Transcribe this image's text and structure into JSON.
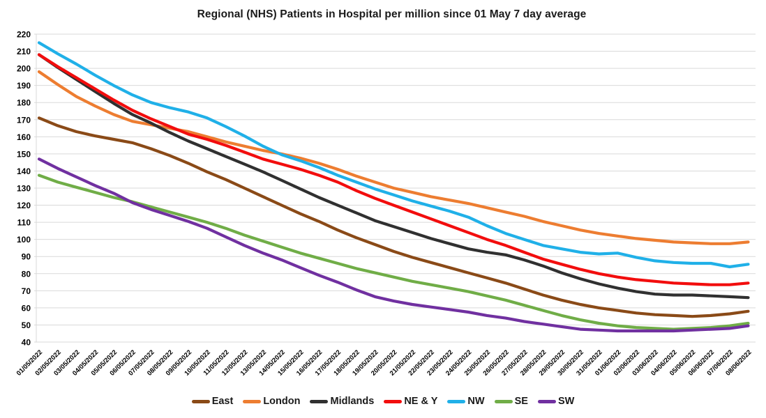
{
  "title": "Regional (NHS) Patients in Hospital per million since 01 May 7 day average",
  "chart_data": {
    "type": "line",
    "title": "Regional (NHS) Patients in Hospital per million since 01 May 7 day average",
    "xlabel": "",
    "ylabel": "",
    "ylim": [
      40,
      220
    ],
    "ytick_step": 10,
    "grid": "horizontal",
    "gridline_color": "#D9D9D9",
    "legend_position": "bottom",
    "x": [
      "01/05/2022",
      "02/05/2022",
      "03/05/2022",
      "04/05/2022",
      "05/05/2022",
      "06/05/2022",
      "07/05/2022",
      "08/05/2022",
      "09/05/2022",
      "10/05/2022",
      "11/05/2022",
      "12/05/2022",
      "13/05/2022",
      "14/05/2022",
      "15/05/2022",
      "16/05/2022",
      "17/05/2022",
      "18/05/2022",
      "19/05/2022",
      "20/05/2022",
      "21/05/2022",
      "22/05/2022",
      "23/05/2022",
      "24/05/2022",
      "25/05/2022",
      "26/05/2022",
      "27/05/2022",
      "28/05/2022",
      "29/05/2022",
      "30/05/2022",
      "31/05/2022",
      "01/06/2022",
      "02/06/2022",
      "03/06/2022",
      "04/06/2022",
      "05/06/2022",
      "06/06/2022",
      "07/06/2022",
      "08/06/2022"
    ],
    "series": [
      {
        "name": "East",
        "color": "#8A4A17",
        "values": [
          171,
          166.5,
          163,
          160.5,
          158.5,
          156.5,
          153,
          149,
          144.5,
          139.5,
          135,
          130,
          125,
          120,
          115,
          110.5,
          105.5,
          101,
          97,
          93,
          89.5,
          86.5,
          83.5,
          80.5,
          77.5,
          74.5,
          71,
          67.5,
          64.5,
          62,
          60,
          58.5,
          57,
          56,
          55.5,
          55,
          55.5,
          56.5,
          58
        ]
      },
      {
        "name": "London",
        "color": "#ED7D31",
        "values": [
          198,
          190.5,
          183.5,
          178,
          173,
          169,
          167,
          165,
          163,
          160,
          157,
          154.5,
          152,
          150,
          147.5,
          144.5,
          141,
          137,
          133.5,
          130,
          127.5,
          125,
          123,
          121,
          118.5,
          116,
          113.5,
          110.5,
          108,
          105.5,
          103.5,
          102,
          100.5,
          99.5,
          98.5,
          98,
          97.5,
          97.5,
          98.5
        ]
      },
      {
        "name": "Midlands",
        "color": "#303030",
        "values": [
          208,
          200.5,
          193.5,
          186.5,
          179.5,
          173,
          168,
          162.5,
          157.5,
          153,
          148.5,
          144,
          139.5,
          134.5,
          129.5,
          124.5,
          120,
          115.5,
          111,
          107.5,
          104,
          100.5,
          97.5,
          94.5,
          92.5,
          91,
          88,
          84.5,
          80.5,
          77,
          74,
          71.5,
          69.5,
          68,
          67.5,
          67.5,
          67,
          66.5,
          66
        ]
      },
      {
        "name": "NE & Y",
        "color": "#F20D0D",
        "values": [
          208,
          201,
          194.5,
          188,
          181.5,
          175.5,
          170.5,
          166,
          161.5,
          158.5,
          155,
          151,
          147,
          144,
          141,
          137.5,
          133.5,
          128.5,
          124,
          120,
          116,
          112,
          108,
          104,
          100,
          96.5,
          92.5,
          88.5,
          85.5,
          82.5,
          80,
          78,
          76.5,
          75.5,
          74.5,
          74,
          73.5,
          73.5,
          74.5
        ]
      },
      {
        "name": "NW",
        "color": "#20B0E8",
        "values": [
          215,
          208.5,
          202.5,
          196,
          190,
          184.5,
          180,
          177,
          174.5,
          171,
          166,
          160.5,
          154.5,
          149.5,
          146,
          142,
          137.5,
          133.5,
          129.5,
          126,
          122.5,
          119.5,
          116.5,
          113,
          108,
          103.5,
          100,
          96.5,
          94.5,
          92.5,
          91.5,
          92,
          89.5,
          87.5,
          86.5,
          86,
          86,
          84,
          85.5
        ]
      },
      {
        "name": "SE",
        "color": "#70AD47",
        "values": [
          137.5,
          133.5,
          130.5,
          127.5,
          124.5,
          122,
          119,
          116,
          113,
          110,
          106.5,
          102.5,
          99,
          95.5,
          92,
          89,
          86,
          83,
          80.5,
          78,
          75.5,
          73.5,
          71.5,
          69.5,
          67,
          64.5,
          61.5,
          58.5,
          55.5,
          53,
          51,
          49.5,
          48.5,
          48,
          47.5,
          48,
          48.5,
          49.5,
          51
        ]
      },
      {
        "name": "SW",
        "color": "#7030A0",
        "values": [
          147,
          141.5,
          136.5,
          131.5,
          127,
          121.5,
          117.5,
          114,
          110.5,
          106.5,
          101.5,
          96.5,
          92,
          88,
          83.5,
          79,
          75,
          70.5,
          66.5,
          64,
          62,
          60.5,
          59,
          57.5,
          55.5,
          54,
          52,
          50.5,
          49,
          47.5,
          47,
          46.5,
          46.5,
          46.5,
          46.5,
          47,
          47.5,
          48,
          49.5
        ]
      }
    ]
  }
}
